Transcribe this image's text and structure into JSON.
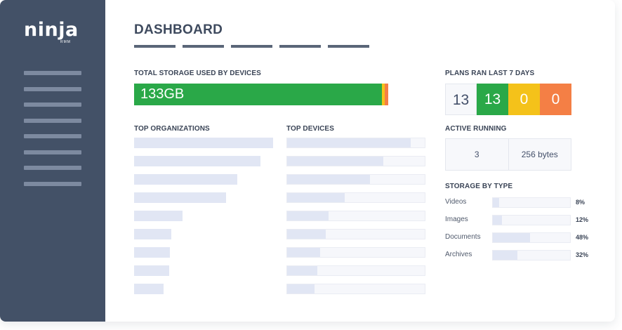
{
  "brand": {
    "name": "ninja",
    "sub": "RMM"
  },
  "sidebar": {
    "item_count": 8
  },
  "page": {
    "title": "DASHBOARD",
    "tab_count": 5
  },
  "storage": {
    "label": "TOTAL STORAGE USED BY DEVICES",
    "value": "133GB",
    "segments": [
      {
        "name": "used",
        "fraction": 0.976,
        "color": "#2aa848"
      },
      {
        "name": "warning",
        "fraction": 0.011,
        "color": "#f4c21a"
      },
      {
        "name": "critical",
        "fraction": 0.013,
        "color": "#f47f45"
      }
    ]
  },
  "top_organizations": {
    "label": "TOP ORGANIZATIONS",
    "levels": [
      1.0,
      0.91,
      0.74,
      0.66,
      0.35,
      0.27,
      0.26,
      0.25,
      0.21
    ]
  },
  "top_devices": {
    "label": "TOP DEVICES",
    "levels": [
      0.9,
      0.7,
      0.6,
      0.42,
      0.3,
      0.28,
      0.24,
      0.22,
      0.2
    ]
  },
  "plans": {
    "label": "PLANS RAN LAST 7 DAYS",
    "total": "13",
    "success": "13",
    "warning": "0",
    "failed": "0"
  },
  "active_running": {
    "label": "ACTIVE RUNNING",
    "count": "3",
    "size": "256 bytes"
  },
  "storage_by_type": {
    "label": "STORAGE BY TYPE",
    "items": [
      {
        "name": "Videos",
        "percent": "8%",
        "level": 0.08
      },
      {
        "name": "Images",
        "percent": "12%",
        "level": 0.12
      },
      {
        "name": "Documents",
        "percent": "48%",
        "level": 0.48
      },
      {
        "name": "Archives",
        "percent": "32%",
        "level": 0.32
      }
    ]
  }
}
